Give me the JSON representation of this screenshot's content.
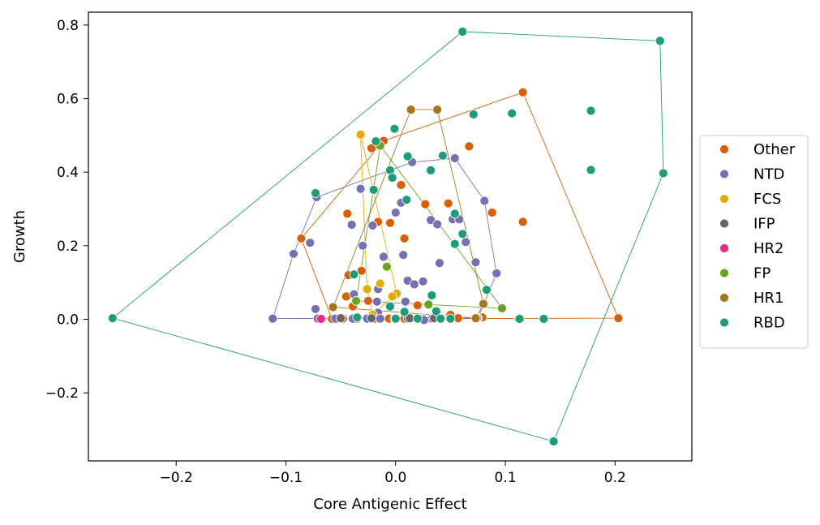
{
  "chart_data": {
    "type": "scatter",
    "xlabel": "Core Antigenic Effect",
    "ylabel": "Growth",
    "xlim": [
      -0.28,
      0.27
    ],
    "ylim": [
      -0.385,
      0.835
    ],
    "xticks": [
      -0.2,
      -0.1,
      0.0,
      0.1,
      0.2
    ],
    "xtick_labels": [
      "−0.2",
      "−0.1",
      "0.0",
      "0.1",
      "0.2"
    ],
    "yticks": [
      -0.2,
      0.0,
      0.2,
      0.4,
      0.6,
      0.8
    ],
    "ytick_labels": [
      "−0.2",
      "0.0",
      "0.2",
      "0.4",
      "0.6",
      "0.8"
    ],
    "grid": false,
    "legend_position": "right",
    "series": [
      {
        "name": "Other",
        "color": "#d95f02",
        "hull": [
          [
            -0.086,
            0.22
          ],
          [
            -0.011,
            0.485
          ],
          [
            0.116,
            0.617
          ],
          [
            0.203,
            0.003
          ],
          [
            -0.058,
            0.001
          ]
        ],
        "points": [
          [
            -0.086,
            0.22
          ],
          [
            -0.011,
            0.485
          ],
          [
            0.116,
            0.617
          ],
          [
            0.203,
            0.003
          ],
          [
            -0.058,
            0.001
          ],
          [
            -0.022,
            0.465
          ],
          [
            0.067,
            0.47
          ],
          [
            0.005,
            0.365
          ],
          [
            0.116,
            0.265
          ],
          [
            0.088,
            0.29
          ],
          [
            0.048,
            0.315
          ],
          [
            0.027,
            0.313
          ],
          [
            -0.044,
            0.287
          ],
          [
            -0.016,
            0.265
          ],
          [
            -0.005,
            0.262
          ],
          [
            0.008,
            0.22
          ],
          [
            -0.031,
            0.132
          ],
          [
            -0.043,
            0.12
          ],
          [
            -0.045,
            0.062
          ],
          [
            -0.025,
            0.05
          ],
          [
            -0.039,
            0.035
          ],
          [
            0.02,
            0.038
          ],
          [
            0.05,
            0.012
          ],
          [
            0.079,
            0.005
          ],
          [
            0.057,
            0.003
          ],
          [
            -0.048,
            0.002
          ],
          [
            -0.035,
            0.002
          ],
          [
            -0.019,
            0.002
          ],
          [
            -0.006,
            0.002
          ],
          [
            0.008,
            0.002
          ],
          [
            0.025,
            0.002
          ],
          [
            0.041,
            0.002
          ],
          [
            0.112,
            0.002
          ]
        ]
      },
      {
        "name": "NTD",
        "color": "#7570b3",
        "hull": [
          [
            -0.112,
            0.002
          ],
          [
            -0.093,
            0.178
          ],
          [
            -0.072,
            0.332
          ],
          [
            0.015,
            0.427
          ],
          [
            0.054,
            0.438
          ],
          [
            0.081,
            0.322
          ],
          [
            0.092,
            0.125
          ],
          [
            0.075,
            0.003
          ]
        ],
        "points": [
          [
            -0.112,
            0.002
          ],
          [
            -0.093,
            0.178
          ],
          [
            -0.072,
            0.332
          ],
          [
            0.015,
            0.427
          ],
          [
            0.054,
            0.438
          ],
          [
            0.081,
            0.322
          ],
          [
            0.092,
            0.125
          ],
          [
            0.075,
            0.003
          ],
          [
            -0.078,
            0.208
          ],
          [
            -0.032,
            0.355
          ],
          [
            0.005,
            0.317
          ],
          [
            0.0,
            0.29
          ],
          [
            -0.04,
            0.257
          ],
          [
            -0.021,
            0.255
          ],
          [
            0.032,
            0.27
          ],
          [
            0.052,
            0.272
          ],
          [
            0.058,
            0.272
          ],
          [
            0.038,
            0.258
          ],
          [
            0.064,
            0.21
          ],
          [
            -0.03,
            0.2
          ],
          [
            -0.011,
            0.17
          ],
          [
            0.007,
            0.175
          ],
          [
            0.073,
            0.155
          ],
          [
            0.04,
            0.153
          ],
          [
            0.011,
            0.105
          ],
          [
            0.025,
            0.103
          ],
          [
            0.017,
            0.095
          ],
          [
            -0.016,
            0.082
          ],
          [
            -0.017,
            0.048
          ],
          [
            0.009,
            0.048
          ],
          [
            -0.016,
            0.018
          ],
          [
            -0.073,
            0.028
          ],
          [
            -0.071,
            0.002
          ],
          [
            -0.055,
            0.002
          ],
          [
            -0.039,
            0.002
          ],
          [
            -0.026,
            0.002
          ],
          [
            -0.014,
            0.002
          ],
          [
            -0.001,
            0.002
          ],
          [
            0.011,
            0.002
          ],
          [
            0.022,
            0.002
          ],
          [
            0.033,
            0.002
          ],
          [
            0.026,
            -0.002
          ],
          [
            -0.038,
            0.068
          ]
        ]
      },
      {
        "name": "FCS",
        "color": "#e6ab02",
        "hull": [
          [
            -0.032,
            0.502
          ],
          [
            0.001,
            0.07
          ],
          [
            -0.021,
            0.013
          ],
          [
            -0.026,
            0.082
          ]
        ],
        "points": [
          [
            -0.032,
            0.502
          ],
          [
            0.001,
            0.07
          ],
          [
            -0.021,
            0.013
          ],
          [
            -0.026,
            0.082
          ],
          [
            -0.014,
            0.097
          ],
          [
            -0.003,
            0.062
          ]
        ]
      },
      {
        "name": "IFP",
        "color": "#666666",
        "hull": [],
        "points": [
          [
            -0.05,
            0.003
          ],
          [
            -0.022,
            0.003
          ],
          [
            0.013,
            0.003
          ],
          [
            0.035,
            0.003
          ],
          [
            0.074,
            0.003
          ],
          [
            0.113,
            0.003
          ]
        ]
      },
      {
        "name": "HR2",
        "color": "#e7298a",
        "hull": [],
        "points": [
          [
            -0.068,
            0.001
          ]
        ]
      },
      {
        "name": "FP",
        "color": "#66a61e",
        "hull": [
          [
            -0.014,
            0.472
          ],
          [
            0.097,
            0.03
          ],
          [
            -0.036,
            0.05
          ]
        ],
        "points": [
          [
            -0.014,
            0.472
          ],
          [
            0.097,
            0.03
          ],
          [
            -0.036,
            0.05
          ],
          [
            -0.008,
            0.143
          ],
          [
            0.03,
            0.04
          ]
        ]
      },
      {
        "name": "HR1",
        "color": "#a6761d",
        "hull": [
          [
            0.014,
            0.57
          ],
          [
            0.038,
            0.57
          ],
          [
            0.08,
            0.042
          ],
          [
            0.073,
            0.003
          ],
          [
            -0.057,
            0.033
          ]
        ],
        "points": [
          [
            0.014,
            0.57
          ],
          [
            0.038,
            0.57
          ],
          [
            0.08,
            0.042
          ],
          [
            0.073,
            0.003
          ],
          [
            -0.057,
            0.033
          ]
        ]
      },
      {
        "name": "RBD",
        "color": "#1b9e77",
        "hull": [
          [
            -0.258,
            0.003
          ],
          [
            0.061,
            0.782
          ],
          [
            0.241,
            0.757
          ],
          [
            0.244,
            0.397
          ],
          [
            0.144,
            -0.332
          ]
        ],
        "points": [
          [
            -0.258,
            0.003
          ],
          [
            0.061,
            0.782
          ],
          [
            0.241,
            0.757
          ],
          [
            0.244,
            0.397
          ],
          [
            0.144,
            -0.332
          ],
          [
            0.178,
            0.567
          ],
          [
            0.106,
            0.56
          ],
          [
            0.071,
            0.557
          ],
          [
            -0.001,
            0.518
          ],
          [
            -0.018,
            0.484
          ],
          [
            0.011,
            0.443
          ],
          [
            0.043,
            0.445
          ],
          [
            0.178,
            0.406
          ],
          [
            0.032,
            0.405
          ],
          [
            -0.005,
            0.405
          ],
          [
            -0.003,
            0.385
          ],
          [
            0.01,
            0.325
          ],
          [
            -0.073,
            0.343
          ],
          [
            -0.02,
            0.352
          ],
          [
            0.061,
            0.232
          ],
          [
            0.054,
            0.287
          ],
          [
            0.054,
            0.205
          ],
          [
            -0.038,
            0.122
          ],
          [
            0.083,
            0.08
          ],
          [
            0.033,
            0.065
          ],
          [
            -0.005,
            0.035
          ],
          [
            0.008,
            0.02
          ],
          [
            0.037,
            0.022
          ],
          [
            -0.035,
            0.005
          ],
          [
            0.0,
            0.002
          ],
          [
            0.02,
            0.002
          ],
          [
            0.041,
            0.002
          ],
          [
            0.05,
            0.002
          ],
          [
            0.113,
            0.001
          ],
          [
            0.135,
            0.001
          ]
        ]
      }
    ]
  }
}
